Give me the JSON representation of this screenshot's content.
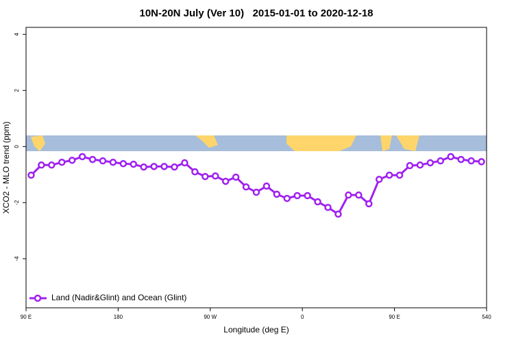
{
  "chart_data": {
    "type": "line",
    "title": "10N-20N July (Ver 10)   2015-01-01 to 2020-12-18",
    "x_label": "Longitude (deg E)",
    "y_label": "XCO2 - MLO trend (ppm)",
    "x": [
      95,
      105,
      115,
      125,
      135,
      145,
      155,
      165,
      175,
      185,
      195,
      205,
      215,
      225,
      235,
      245,
      255,
      265,
      275,
      285,
      295,
      305,
      315,
      325,
      335,
      345,
      355,
      365,
      375,
      385,
      395,
      405,
      415,
      425,
      435,
      445,
      455,
      465,
      475,
      485,
      495,
      505,
      515,
      525,
      535
    ],
    "series": [
      {
        "name": "Land (Nadir&Glint) and Ocean (Glint)",
        "color": "#a020f0",
        "values": [
          -1.02,
          -0.66,
          -0.66,
          -0.56,
          -0.49,
          -0.36,
          -0.46,
          -0.51,
          -0.56,
          -0.61,
          -0.63,
          -0.73,
          -0.71,
          -0.71,
          -0.73,
          -0.58,
          -0.9,
          -1.07,
          -1.05,
          -1.24,
          -1.09,
          -1.44,
          -1.63,
          -1.41,
          -1.7,
          -1.85,
          -1.75,
          -1.75,
          -1.97,
          -2.17,
          -2.41,
          -1.73,
          -1.73,
          -2.04,
          -1.17,
          -1.02,
          -1.02,
          -0.68,
          -0.66,
          -0.58,
          -0.51,
          -0.36,
          -0.46,
          -0.51,
          -0.54
        ]
      }
    ],
    "xlim": [
      90,
      540
    ],
    "xticks": [
      {
        "value": 90,
        "label": "90 E"
      },
      180,
      {
        "value": 270,
        "label": "90 W"
      },
      {
        "value": 360,
        "label": "0"
      },
      {
        "value": 450,
        "label": "90 E"
      },
      540
    ],
    "ylim": [
      -5.75,
      4.25
    ],
    "yticks": [
      -4,
      -2,
      0,
      2,
      4
    ],
    "legend": "bottom-left"
  }
}
